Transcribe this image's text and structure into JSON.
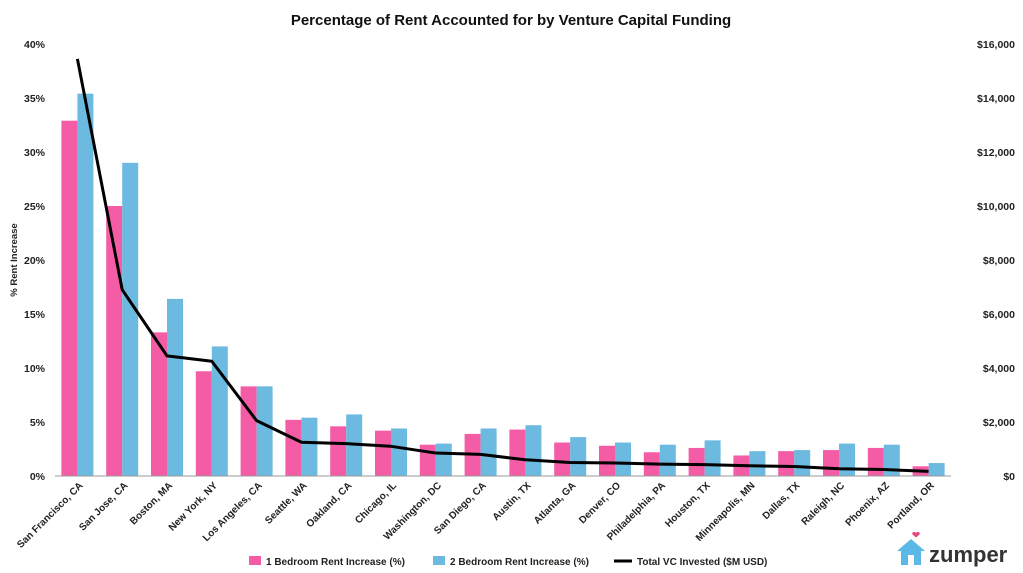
{
  "chart_data": {
    "type": "bar",
    "title": "Percentage of Rent Accounted for by Venture Capital Funding",
    "ylabel": "% Rent Increase",
    "xlabel": "",
    "ylim": [
      0,
      40
    ],
    "y_ticks": [
      "0%",
      "5%",
      "10%",
      "15%",
      "20%",
      "25%",
      "30%",
      "35%",
      "40%"
    ],
    "y2lim": [
      0,
      16000
    ],
    "y2_ticks": [
      "$0",
      "$2,000",
      "$4,000",
      "$6,000",
      "$8,000",
      "$10,000",
      "$12,000",
      "$14,000",
      "$16,000"
    ],
    "categories": [
      "San Francisco, CA",
      "San Jose, CA",
      "Boston, MA",
      "New York, NY",
      "Los Angeles, CA",
      "Seattle, WA",
      "Oakland, CA",
      "Chicago, IL",
      "Washington, DC",
      "San Diego, CA",
      "Austin, TX",
      "Atlanta, GA",
      "Denver, CO",
      "Philadelphia, PA",
      "Houston, TX",
      "Minneapolis, MN",
      "Dallas, TX",
      "Raleigh, NC",
      "Phoenix, AZ",
      "Portland, OR"
    ],
    "series": [
      {
        "name": "1 Bedroom Rent Increase (%)",
        "type": "bar",
        "axis": "left",
        "color": "#f45ca6",
        "values": [
          32.9,
          25.0,
          13.3,
          9.7,
          8.3,
          5.2,
          4.6,
          4.2,
          2.9,
          3.9,
          4.3,
          3.1,
          2.8,
          2.2,
          2.6,
          1.9,
          2.3,
          2.4,
          2.6,
          0.9
        ]
      },
      {
        "name": "2 Bedroom Rent Increase (%)",
        "type": "bar",
        "axis": "left",
        "color": "#6cbadf",
        "values": [
          35.4,
          29.0,
          16.4,
          12.0,
          8.3,
          5.4,
          5.7,
          4.4,
          3.0,
          4.4,
          4.7,
          3.6,
          3.1,
          2.9,
          3.3,
          2.3,
          2.4,
          3.0,
          2.9,
          1.2
        ]
      },
      {
        "name": "Total VC Invested ($M USD)",
        "type": "line",
        "axis": "right",
        "color": "#000000",
        "values": [
          15450,
          6900,
          4450,
          4250,
          2050,
          1250,
          1200,
          1100,
          850,
          800,
          600,
          500,
          480,
          440,
          420,
          380,
          350,
          270,
          240,
          170
        ]
      }
    ],
    "grid": false,
    "legend_position": "bottom-center"
  },
  "logo": {
    "text": "zumper",
    "icon": "house-heart-icon",
    "icon_color": "#5cb8e6",
    "heart_color": "#e8457e"
  }
}
